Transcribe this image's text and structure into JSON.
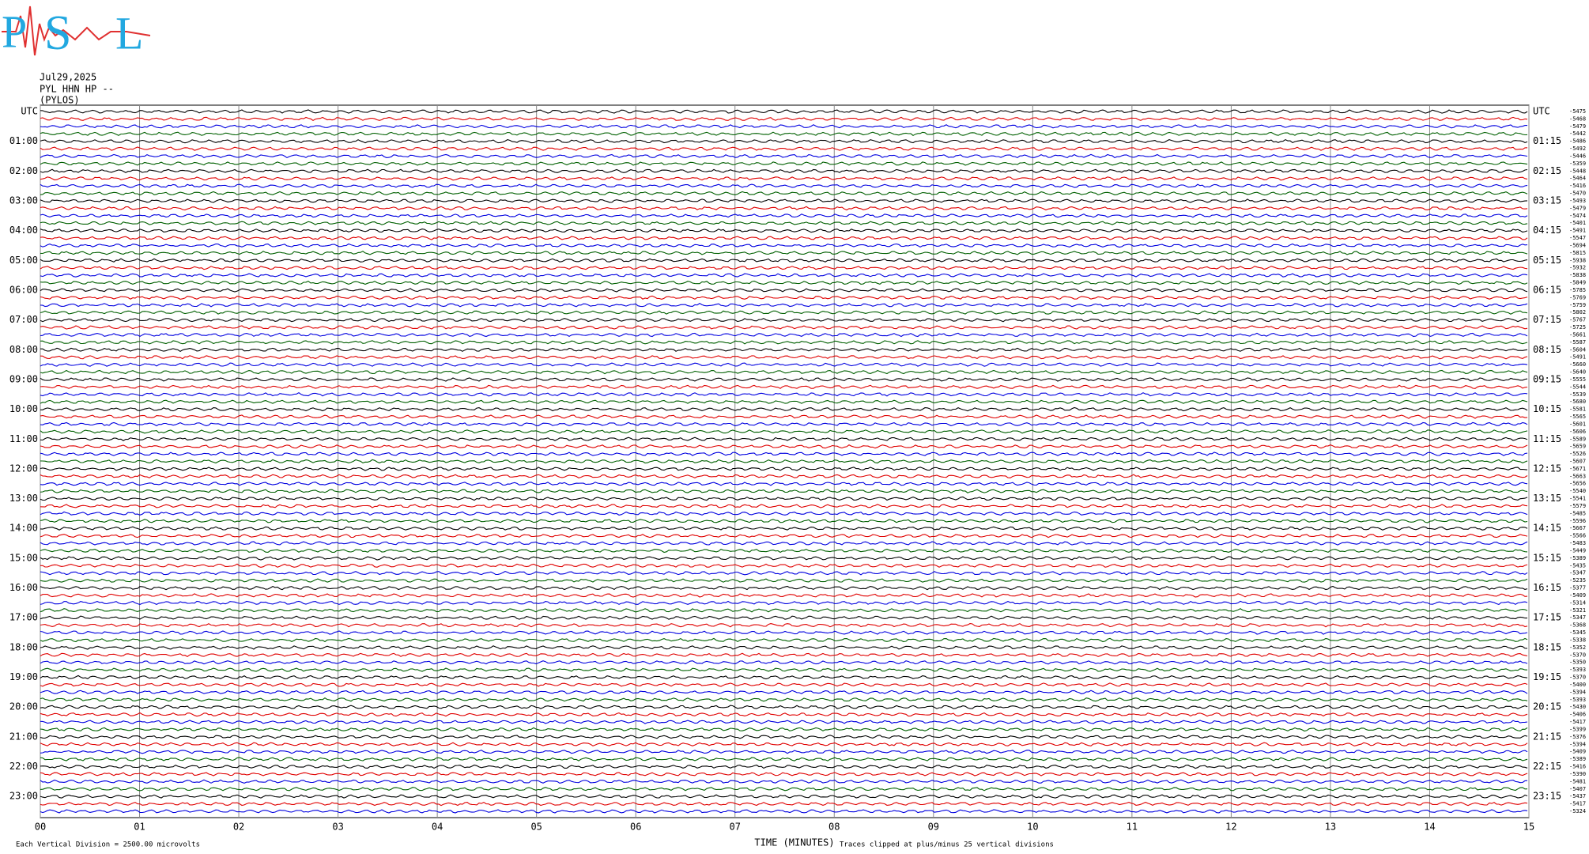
{
  "logo": {
    "p": "P",
    "s": "S",
    "l": "L"
  },
  "chart_data": {
    "type": "helicorder",
    "date": "Jul29,2025",
    "station": "PYL HHN HP --",
    "location": "(PYLOS)",
    "xlabel": "TIME (MINUTES)",
    "footnote_left": "Each Vertical Division = 2500.00 microvolts",
    "footnote_right": "Traces clipped at plus/minus 25 vertical divisions",
    "xlim": [
      0,
      15
    ],
    "xticks": [
      {
        "value": 0,
        "label": "00"
      },
      {
        "value": 1,
        "label": "01"
      },
      {
        "value": 2,
        "label": "02"
      },
      {
        "value": 3,
        "label": "03"
      },
      {
        "value": 4,
        "label": "04"
      },
      {
        "value": 5,
        "label": "05"
      },
      {
        "value": 6,
        "label": "06"
      },
      {
        "value": 7,
        "label": "07"
      },
      {
        "value": 8,
        "label": "08"
      },
      {
        "value": 9,
        "label": "09"
      },
      10,
      11,
      12,
      13,
      14,
      15
    ],
    "left_labels": [
      "UTC",
      "01:00",
      "02:00",
      "03:00",
      "04:00",
      "05:00",
      "06:00",
      "07:00",
      "08:00",
      "09:00",
      "10:00",
      "11:00",
      "12:00",
      "13:00",
      "14:00",
      "15:00",
      "16:00",
      "17:00",
      "18:00",
      "19:00",
      "20:00",
      "21:00",
      "22:00",
      "23:00"
    ],
    "right_labels": [
      "UTC",
      "01:15",
      "02:15",
      "03:15",
      "04:15",
      "05:15",
      "06:15",
      "07:15",
      "08:15",
      "09:15",
      "10:15",
      "11:15",
      "12:15",
      "13:15",
      "14:15",
      "15:15",
      "16:15",
      "17:15",
      "18:15",
      "19:15",
      "20:15",
      "21:15",
      "22:15",
      "23:15"
    ],
    "colors": [
      "#000000",
      "#e00000",
      "#0000e0",
      "#006000"
    ],
    "offsets": [
      -5475,
      -5468,
      -5479,
      -5442,
      -5486,
      -5492,
      -5446,
      -5359,
      -5448,
      -5464,
      -5416,
      -5470,
      -5493,
      -5479,
      -5474,
      -5401,
      -5491,
      -5547,
      -5694,
      -5815,
      -5938,
      -5932,
      -5838,
      -5849,
      -5785,
      -5769,
      -5759,
      -5802,
      -5767,
      -5725,
      -5661,
      -5587,
      -5604,
      -5491,
      -5660,
      -5640,
      -5555,
      -5544,
      -5539,
      -5680,
      -5581,
      -5565,
      -5601,
      -5606,
      -5589,
      -5659,
      -5526,
      -5607,
      -5671,
      -5663,
      -5656,
      -5540,
      -5541,
      -5579,
      -5485,
      -5596,
      -5667,
      -5566,
      -5483,
      -5449,
      -5389,
      -5435,
      -5347,
      -5235,
      -5377,
      -5409,
      -5314,
      -5321,
      -5347,
      -5368,
      -5345,
      -5338,
      -5352,
      -5370,
      -5350,
      -5393,
      -5370,
      -5400,
      -5394,
      -5393,
      -5430,
      -5406,
      -5417,
      -5399,
      -5376,
      -5394,
      -5409,
      -5389,
      -5416,
      -5390,
      -5481,
      -5407,
      -5437,
      -5417,
      -5324
    ]
  }
}
